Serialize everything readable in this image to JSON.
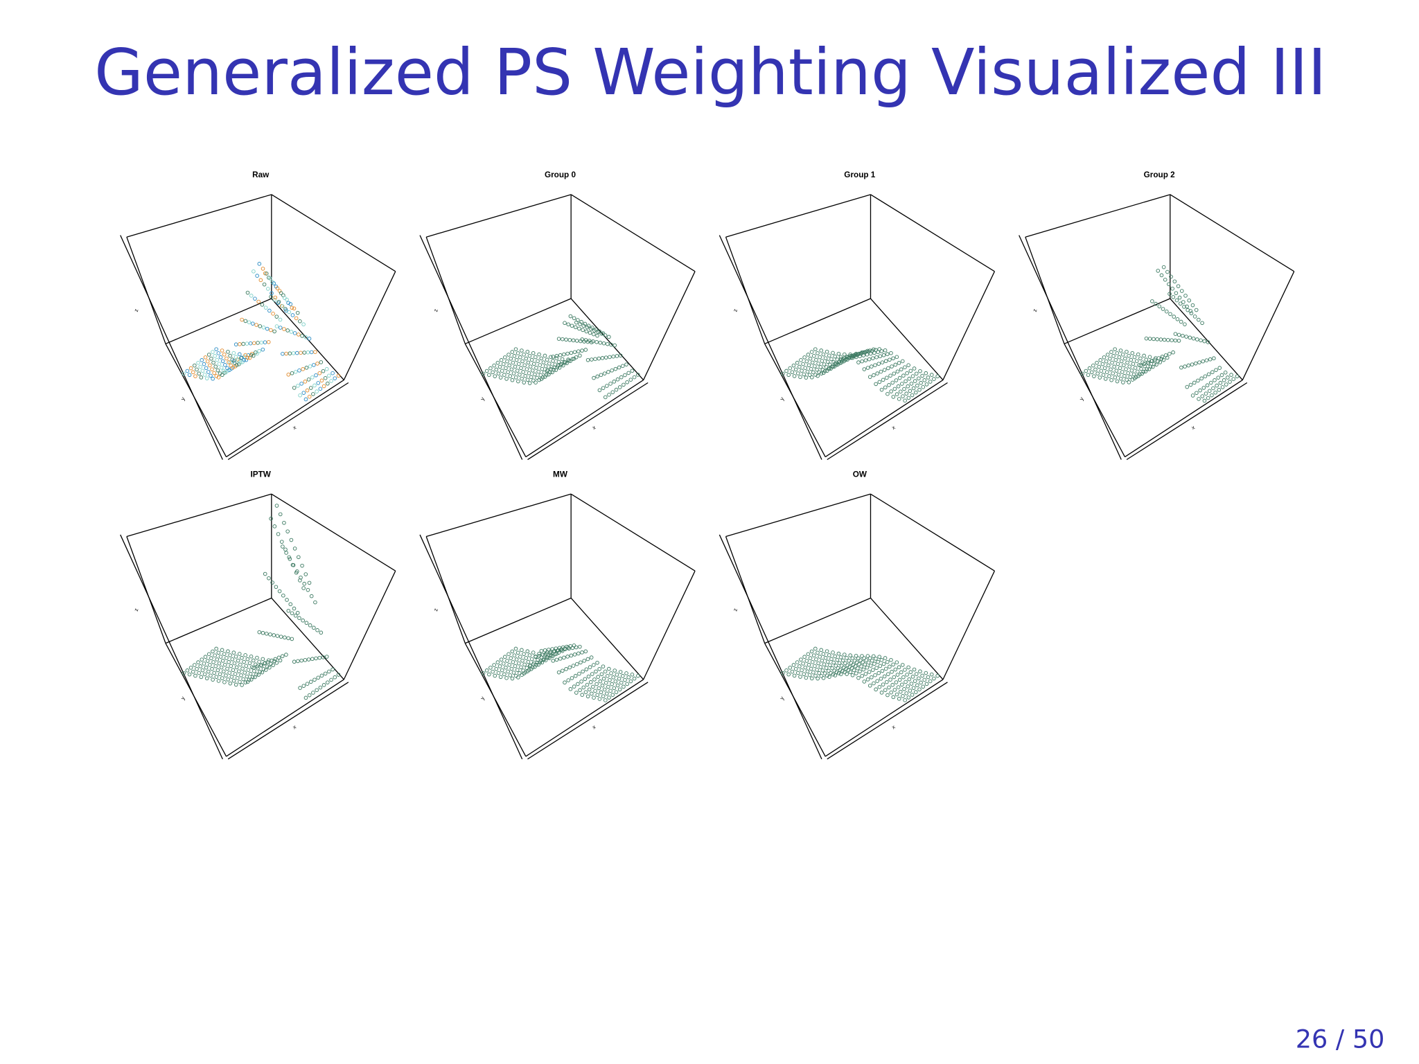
{
  "header": {
    "title": "Generalized PS Weighting Visualized III"
  },
  "panels": [
    {
      "title": "Raw",
      "axis_labels": [
        "x",
        "y",
        "z"
      ]
    },
    {
      "title": "Group 0",
      "axis_labels": [
        "x",
        "y",
        "z"
      ]
    },
    {
      "title": "Group 1",
      "axis_labels": [
        "x",
        "y",
        "z"
      ]
    },
    {
      "title": "Group 2",
      "axis_labels": [
        "x",
        "y",
        "z"
      ]
    },
    {
      "title": "IPTW",
      "axis_labels": [
        "x",
        "y",
        "z"
      ]
    },
    {
      "title": "MW",
      "axis_labels": [
        "x",
        "y",
        "z"
      ]
    },
    {
      "title": "OW",
      "axis_labels": [
        "x",
        "y",
        "z"
      ]
    }
  ],
  "footer": {
    "page": "26 / 50"
  }
}
